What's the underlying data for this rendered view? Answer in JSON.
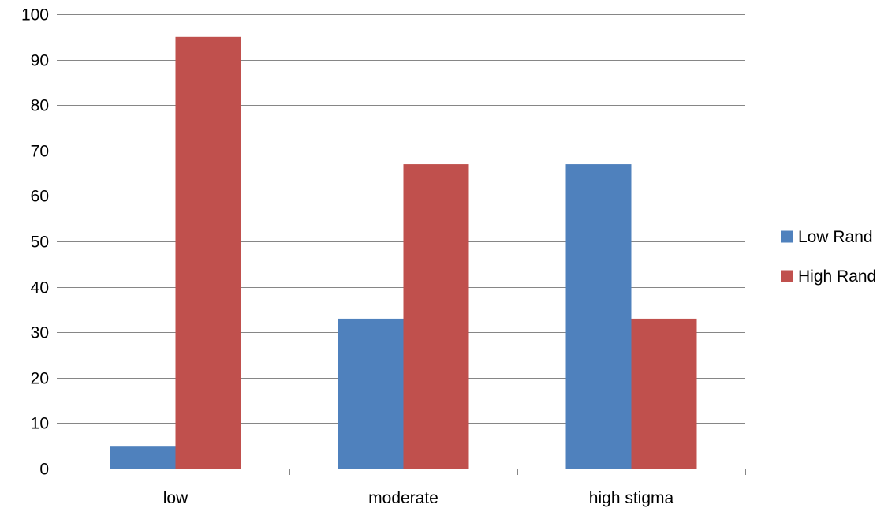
{
  "chart_data": {
    "type": "bar",
    "categories": [
      "low",
      "moderate",
      "high stigma"
    ],
    "series": [
      {
        "name": "Low Rand",
        "values": [
          5,
          33,
          67
        ],
        "color": "#4f81bd"
      },
      {
        "name": "High Rand",
        "values": [
          95,
          67,
          33
        ],
        "color": "#c0504d"
      }
    ],
    "title": "",
    "xlabel": "",
    "ylabel": "",
    "ylim": [
      0,
      100
    ],
    "yticks": [
      0,
      10,
      20,
      30,
      40,
      50,
      60,
      70,
      80,
      90,
      100
    ],
    "grid": "horizontal",
    "legend_position": "right",
    "gridline_color": "#868686",
    "axis_color": "#868686"
  }
}
